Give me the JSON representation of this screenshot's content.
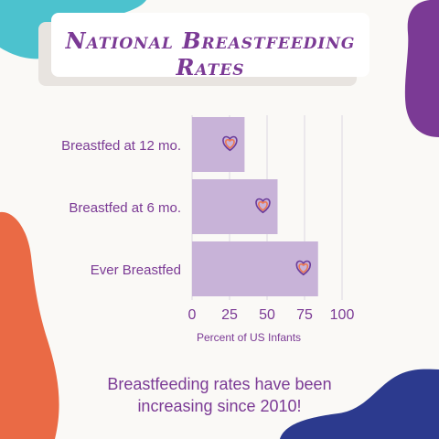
{
  "colors": {
    "background": "#faf9f6",
    "bar": "#c8b3d8",
    "text_purple": "#7b3a95",
    "teal": "#4cc2ce",
    "purple_blob": "#7b3a95",
    "orange_blob": "#ea6a45",
    "navy_blob": "#2c3a8e",
    "grid": "#e6e2e8",
    "icon_orange": "#ee7a52",
    "icon_purple": "#6b3c9a"
  },
  "icons": [
    "teal-corner-blob",
    "purple-corner-blob",
    "orange-corner-blob",
    "navy-corner-blob",
    "heart-icon"
  ],
  "chart_data": {
    "type": "bar",
    "orientation": "horizontal",
    "title": "National Breastfeeding Rates",
    "categories": [
      "Breastfed at 12 mo.",
      "Breastfed at 6 mo.",
      "Ever Breastfed"
    ],
    "values": [
      35,
      57,
      84
    ],
    "xlabel": "Percent of US  Infants",
    "ylabel": "",
    "xlim": [
      0,
      100
    ],
    "xticks": [
      "0",
      "25",
      "50",
      "75",
      "100"
    ],
    "grid": true,
    "bar_marker_icon": "heart-icon"
  },
  "footer": {
    "line1": "Breastfeeding rates have been",
    "line2": "increasing since 2010!"
  }
}
